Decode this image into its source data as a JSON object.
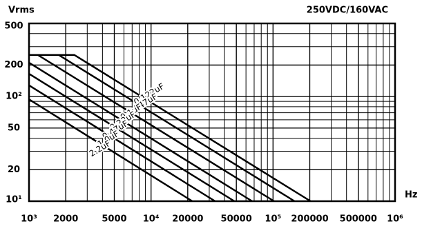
{
  "chart_data": {
    "type": "line",
    "title": "250VDC/160VAC",
    "y_label": "Vrms",
    "x_label": "Hz",
    "log_scale": {
      "x": true,
      "y": true
    },
    "grid": true,
    "xlim": [
      1000,
      1000000
    ],
    "ylim": [
      10,
      500
    ],
    "xticks": [
      {
        "value": 1000,
        "label": "10³"
      },
      2000,
      5000,
      {
        "value": 10000,
        "label": "10⁴"
      },
      20000,
      50000,
      {
        "value": 100000,
        "label": "10⁵"
      },
      200000,
      500000,
      {
        "value": 1000000,
        "label": "10⁶"
      }
    ],
    "yticks": [
      {
        "value": 10,
        "label": "10¹"
      },
      20,
      50,
      {
        "value": 100,
        "label": "10²"
      },
      200,
      500
    ],
    "series": [
      {
        "name": "0.122uF",
        "color": "#000000",
        "x": [
          1000,
          2350,
          203000
        ],
        "values": [
          250,
          250,
          10
        ]
      },
      {
        "name": "0.047uF",
        "color": "#000000",
        "x": [
          1000,
          1750,
          150000
        ],
        "values": [
          250,
          250,
          10
        ]
      },
      {
        "name": "0.1uF",
        "color": "#000000",
        "x": [
          1000,
          1180,
          102000
        ],
        "values": [
          250,
          250,
          10
        ]
      },
      {
        "name": "0.22uF",
        "color": "#000000",
        "x": [
          1000,
          67400
        ],
        "values": [
          211,
          10
        ]
      },
      {
        "name": "0.47uF",
        "color": "#000000",
        "x": [
          1000,
          48200
        ],
        "values": [
          165,
          10
        ]
      },
      {
        "name": "1.0uF",
        "color": "#000000",
        "x": [
          1000,
          33500
        ],
        "values": [
          128,
          10
        ]
      },
      {
        "name": "2.2uF",
        "color": "#000000",
        "x": [
          1000,
          21800
        ],
        "values": [
          94,
          10
        ]
      }
    ]
  }
}
